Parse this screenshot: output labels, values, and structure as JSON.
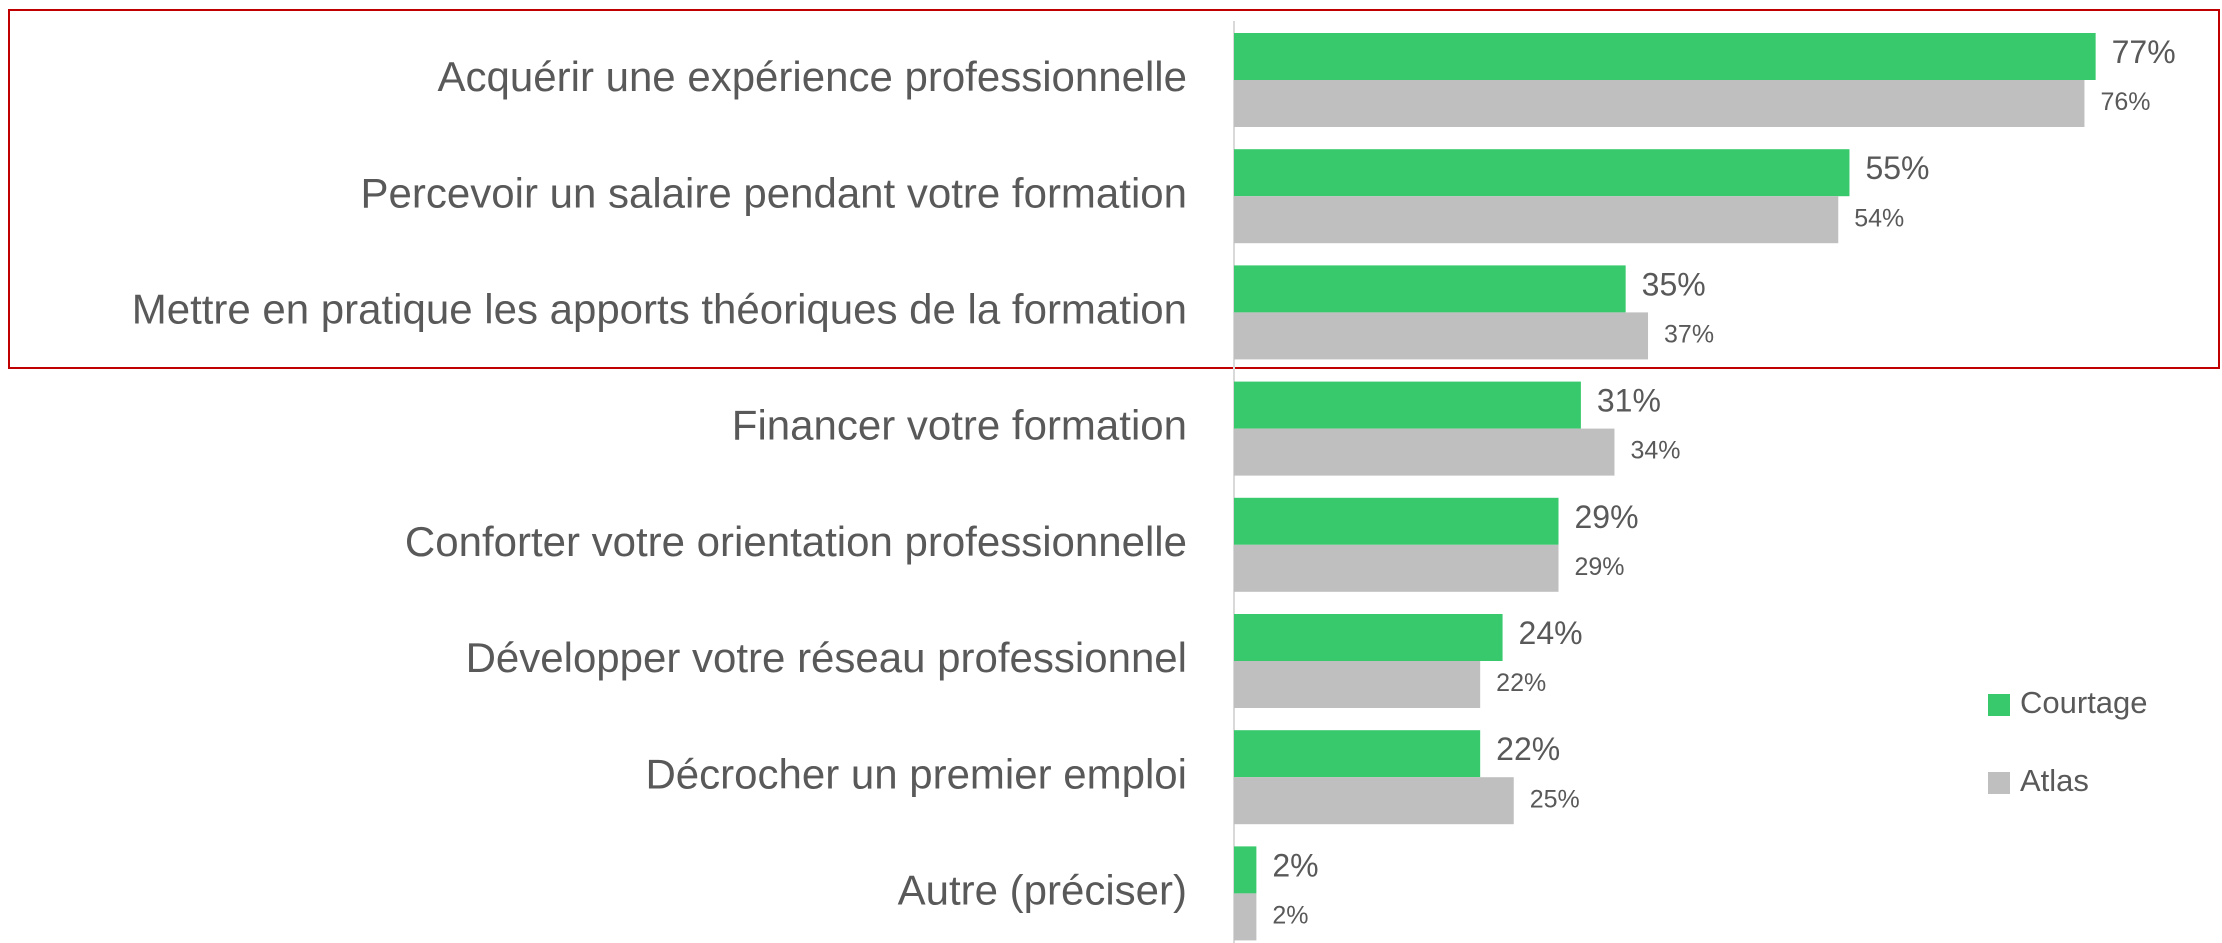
{
  "chart_data": {
    "type": "bar",
    "orientation": "horizontal",
    "categories": [
      "Acquérir une expérience professionnelle",
      "Percevoir un salaire pendant votre formation",
      "Mettre en pratique les apports théoriques de la formation",
      "Financer votre formation",
      "Conforter votre orientation professionnelle",
      "Développer votre réseau professionnel",
      "Décrocher un premier emploi",
      "Autre (préciser)"
    ],
    "series": [
      {
        "name": "Courtage",
        "color": "#37c96b",
        "values": [
          77,
          55,
          35,
          31,
          29,
          24,
          22,
          2
        ],
        "value_labels": [
          "77%",
          "55%",
          "35%",
          "31%",
          "29%",
          "24%",
          "22%",
          "2%"
        ]
      },
      {
        "name": "Atlas",
        "color": "#bfbfbf",
        "values": [
          76,
          54,
          37,
          34,
          29,
          22,
          25,
          2
        ],
        "value_labels": [
          "76%",
          "54%",
          "37%",
          "34%",
          "29%",
          "22%",
          "25%",
          "2%"
        ]
      }
    ],
    "legend": "right"
  }
}
